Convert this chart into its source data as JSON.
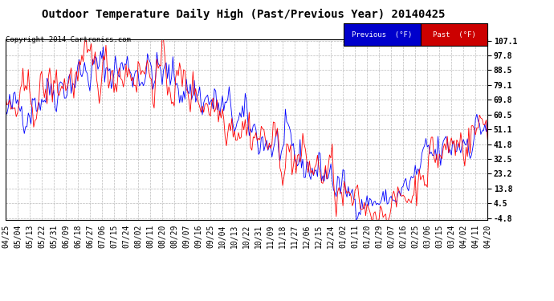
{
  "title": "Outdoor Temperature Daily High (Past/Previous Year) 20140425",
  "copyright": "Copyright 2014 Cartronics.com",
  "ylabel_ticks": [
    -4.8,
    4.5,
    13.8,
    23.2,
    32.5,
    41.8,
    51.1,
    60.5,
    69.8,
    79.1,
    88.5,
    97.8,
    107.1
  ],
  "legend_labels": [
    "Previous  (°F)",
    "Past  (°F)"
  ],
  "line_color_prev": "#0000ff",
  "line_color_past": "#ff0000",
  "legend_bg_prev": "#0000cc",
  "legend_bg_past": "#cc0000",
  "background_color": "#ffffff",
  "plot_bg_color": "#ffffff",
  "grid_color": "#bbbbbb",
  "title_fontsize": 10,
  "copyright_fontsize": 6.5,
  "tick_fontsize": 7,
  "x_tick_labels": [
    "04/25",
    "05/04",
    "05/13",
    "05/22",
    "05/31",
    "06/09",
    "06/18",
    "06/27",
    "07/06",
    "07/15",
    "07/24",
    "08/02",
    "08/11",
    "08/20",
    "08/29",
    "09/07",
    "09/16",
    "09/25",
    "10/04",
    "10/13",
    "10/22",
    "10/31",
    "11/09",
    "11/18",
    "11/27",
    "12/06",
    "12/15",
    "12/24",
    "01/02",
    "01/11",
    "01/20",
    "01/29",
    "02/07",
    "02/16",
    "02/25",
    "03/06",
    "03/15",
    "03/24",
    "04/02",
    "04/11",
    "04/20"
  ],
  "ylim": [
    -4.8,
    107.1
  ]
}
